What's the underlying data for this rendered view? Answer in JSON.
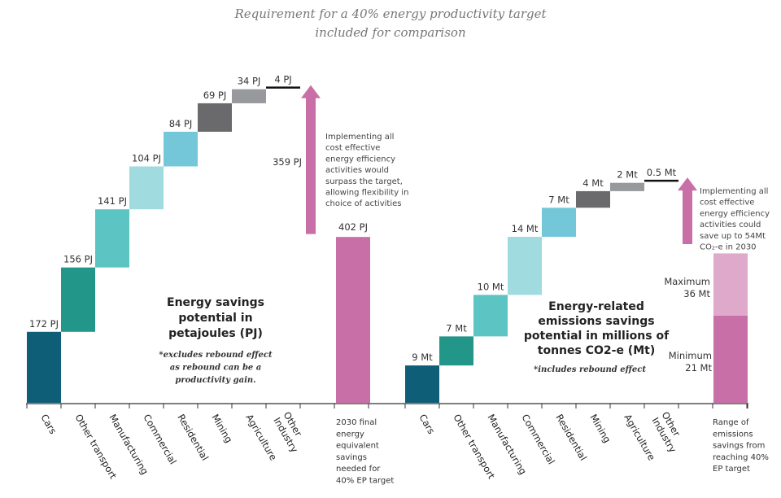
{
  "header": {
    "title_lines": [
      "Requirement for a 40% energy productivity target",
      "included for comparison"
    ]
  },
  "chart_data": [
    {
      "type": "waterfall",
      "title_lines": [
        "Energy savings",
        "potential in",
        "petajoules (PJ)"
      ],
      "note_lines": [
        "*excludes rebound effect",
        "as rebound can be a",
        "productivity gain."
      ],
      "unit": "PJ",
      "categories": [
        "Cars",
        "Other transport",
        "Manufacturing",
        "Commercial",
        "Residential",
        "Mining",
        "Agriculture",
        "Other Industry"
      ],
      "values": [
        172,
        156,
        141,
        104,
        84,
        69,
        34,
        4
      ],
      "labels": [
        "172 PJ",
        "156 PJ",
        "141 PJ",
        "104 PJ",
        "84 PJ",
        "69 PJ",
        "34 PJ",
        "4 PJ"
      ],
      "colors": [
        "#0e5e78",
        "#229689",
        "#5cc4c3",
        "#a0dbe0",
        "#74c7d8",
        "#6a6a6c",
        "#98999c",
        "#111111"
      ],
      "target": {
        "value": 402,
        "label": "402 PJ",
        "color": "#c86fa8",
        "category_lines": [
          "2030 final",
          "energy",
          "equivalent",
          "savings",
          "needed for",
          "40% EP target"
        ]
      },
      "surplus_arrow": {
        "value": 359,
        "label": "359 PJ",
        "color": "#c86fa8",
        "annotation_lines": [
          "Implementing all",
          "cost effective",
          "energy efficiency",
          "activities would",
          "surpass the target,",
          "allowing flexibility in",
          "choice of activities"
        ]
      }
    },
    {
      "type": "waterfall",
      "title_lines": [
        "Energy-related",
        "emissions savings",
        "potential in millions of",
        "tonnes CO2-e (Mt)"
      ],
      "note_lines": [
        "*includes rebound effect"
      ],
      "unit": "Mt",
      "categories": [
        "Cars",
        "Other transport",
        "Manufacturing",
        "Commercial",
        "Residential",
        "Mining",
        "Agriculture",
        "Other Industry"
      ],
      "values": [
        9,
        7,
        10,
        14,
        7,
        4,
        2,
        0.5
      ],
      "labels": [
        "9 Mt",
        "7 Mt",
        "10 Mt",
        "14 Mt",
        "7 Mt",
        "4 Mt",
        "2 Mt",
        "0.5 Mt"
      ],
      "colors": [
        "#0e5e78",
        "#229689",
        "#5cc4c3",
        "#a0dbe0",
        "#74c7d8",
        "#6a6a6c",
        "#98999c",
        "#111111"
      ],
      "target_range": {
        "min": 21,
        "max": 36,
        "min_label_lines": [
          "Minimum",
          "21 Mt"
        ],
        "max_label_lines": [
          "Maximum",
          "36 Mt"
        ],
        "min_color": "#c86fa8",
        "max_color": "#dfa9cb",
        "category_lines": [
          "Range of",
          "emissions",
          "savings from",
          "reaching 40%",
          "EP target"
        ]
      },
      "surplus_arrow": {
        "color": "#c86fa8",
        "annotation_lines": [
          "Implementing all",
          "cost effective",
          "energy efficiency",
          "activities could",
          "save up to 54Mt",
          "CO₂-e in 2030"
        ]
      }
    }
  ]
}
